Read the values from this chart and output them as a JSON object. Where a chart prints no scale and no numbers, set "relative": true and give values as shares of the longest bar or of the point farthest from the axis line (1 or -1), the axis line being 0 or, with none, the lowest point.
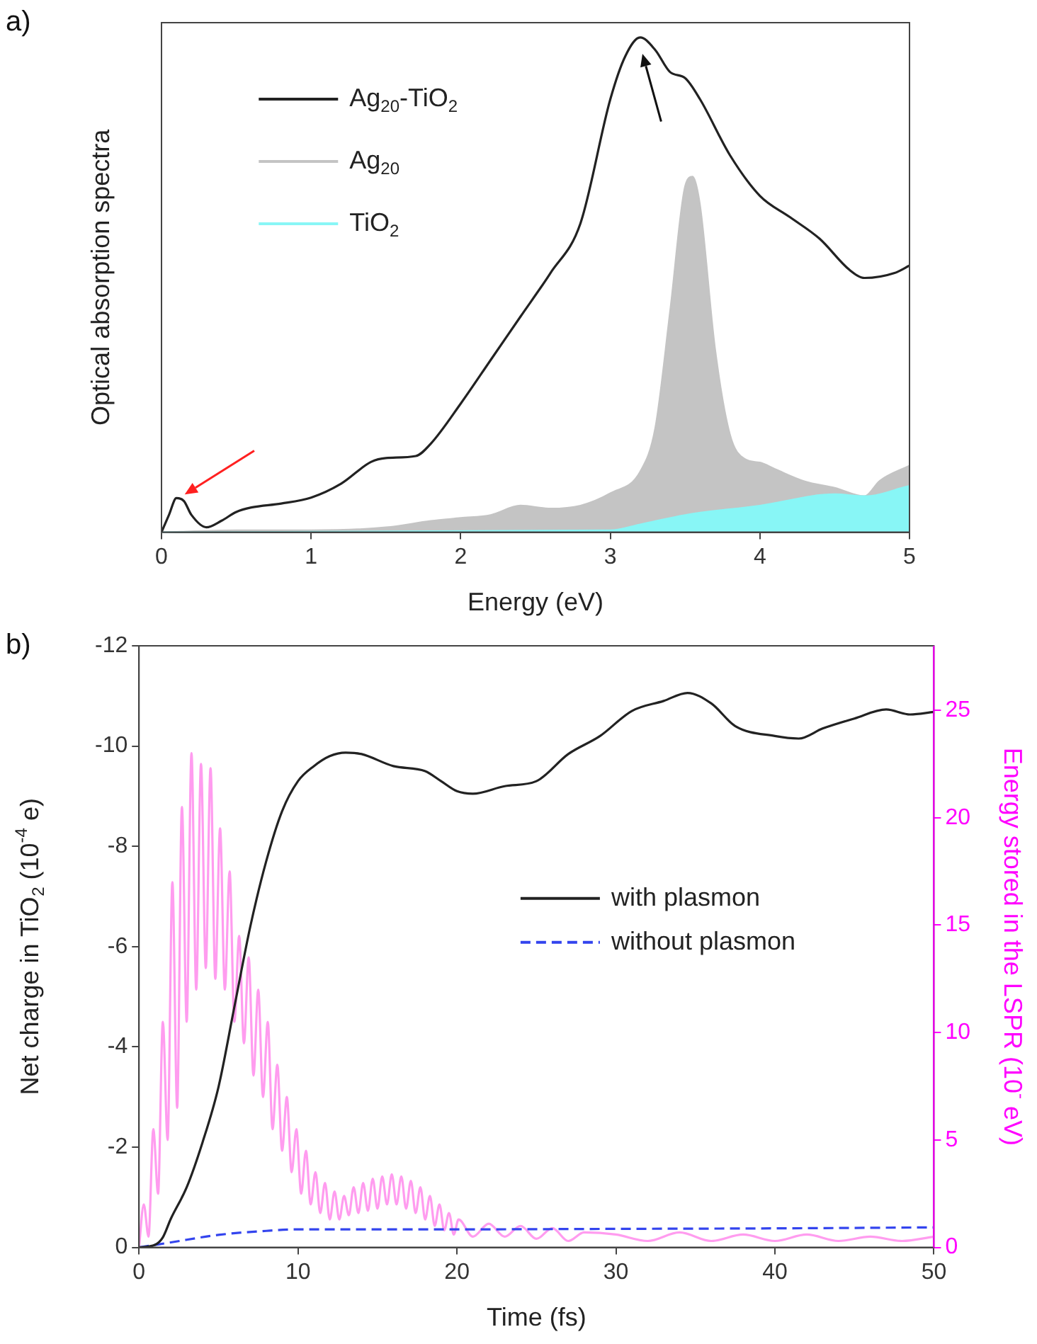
{
  "chart_data": [
    {
      "type": "line",
      "relative": true,
      "xlabel": "Energy (eV)",
      "ylabel": "Optical absorption spectra",
      "annotations": [
        "a)"
      ],
      "xlim": [
        0,
        5
      ],
      "xticks": [
        0,
        1,
        2,
        3,
        4,
        5
      ],
      "legend": "top left",
      "marker": "none",
      "grid": false,
      "series": [
        {
          "name": "Ag$_{20}$-TiO$_{2}$",
          "color": "#222222",
          "x": [
            0,
            0.05,
            0.1,
            0.15,
            0.2,
            0.3,
            0.4,
            0.5,
            0.6,
            0.8,
            1.0,
            1.2,
            1.4,
            1.5,
            1.7,
            1.8,
            2.0,
            2.2,
            2.4,
            2.6,
            2.8,
            3.0,
            3.1,
            3.2,
            3.3,
            3.4,
            3.5,
            3.6,
            3.8,
            4.0,
            4.2,
            4.4,
            4.6,
            4.7,
            4.9,
            5.0
          ],
          "values": [
            0,
            0.035,
            0.069,
            0.063,
            0.035,
            0.01,
            0.023,
            0.041,
            0.05,
            0.058,
            0.07,
            0.098,
            0.142,
            0.15,
            0.154,
            0.179,
            0.26,
            0.348,
            0.436,
            0.524,
            0.624,
            0.875,
            0.962,
            1,
            0.975,
            0.93,
            0.918,
            0.875,
            0.762,
            0.68,
            0.637,
            0.593,
            0.53,
            0.514,
            0.524,
            0.539
          ]
        },
        {
          "name": "Ag$_{20}$",
          "type": "area",
          "color": "#c4c4c4",
          "x": [
            0,
            0.5,
            1.0,
            1.5,
            1.8,
            2.0,
            2.2,
            2.4,
            2.6,
            2.8,
            3.0,
            3.2,
            3.3,
            3.4,
            3.5,
            3.55,
            3.6,
            3.7,
            3.8,
            3.9,
            4.0,
            4.1,
            4.3,
            4.5,
            4.7,
            4.8,
            5.0
          ],
          "values": [
            0,
            0.004,
            0.004,
            0.01,
            0.023,
            0.029,
            0.035,
            0.054,
            0.048,
            0.054,
            0.079,
            0.123,
            0.211,
            0.449,
            0.7,
            0.719,
            0.662,
            0.373,
            0.198,
            0.148,
            0.141,
            0.128,
            0.103,
            0.09,
            0.073,
            0.104,
            0.135
          ]
        },
        {
          "name": "TiO$_{2}$",
          "type": "area",
          "color": "#88f6f6",
          "x": [
            0,
            3.0,
            3.2,
            3.5,
            4.0,
            4.5,
            4.7,
            5.0
          ],
          "values": [
            0,
            0.004,
            0.016,
            0.035,
            0.054,
            0.077,
            0.073,
            0.094
          ]
        }
      ]
    },
    {
      "type": "line",
      "xlabel": "Time (fs)",
      "ylabel": "Net charge in TiO$_{2}$ (10$^{-4}$ e)",
      "y2label": "Energy stored in the LSPR (10$^{-}$ eV)",
      "annotations": [
        "b)"
      ],
      "xlim": [
        0,
        50
      ],
      "xticks": [
        0,
        10,
        20,
        30,
        40,
        50
      ],
      "ylim": [
        0,
        -12
      ],
      "yticks": [
        0,
        -2,
        -4,
        -6,
        -8,
        -10,
        -12
      ],
      "y2lim": [
        0,
        28
      ],
      "y2ticks": [
        0,
        5,
        10,
        15,
        20,
        25
      ],
      "legend": "right",
      "marker": "none",
      "grid": false,
      "series": [
        {
          "name": "with plasmon",
          "color": "#222222",
          "line_style": "solid",
          "x": [
            0,
            1,
            1.5,
            2,
            3,
            4,
            5,
            6,
            7,
            8,
            9,
            10,
            11,
            12,
            13,
            14,
            16,
            18,
            19,
            20,
            21,
            23,
            25,
            27,
            29,
            31,
            33,
            34.5,
            36,
            37.5,
            40,
            41.5,
            43,
            45,
            47,
            48.5,
            50
          ],
          "values": [
            0,
            -0.05,
            -0.2,
            -0.57,
            -1.2,
            -2.1,
            -3.2,
            -4.8,
            -6.4,
            -7.7,
            -8.7,
            -9.3,
            -9.6,
            -9.8,
            -9.87,
            -9.84,
            -9.6,
            -9.5,
            -9.3,
            -9.1,
            -9.05,
            -9.2,
            -9.3,
            -9.84,
            -10.2,
            -10.7,
            -10.9,
            -11.06,
            -10.85,
            -10.4,
            -10.2,
            -10.15,
            -10.35,
            -10.55,
            -10.73,
            -10.63,
            -10.68
          ]
        },
        {
          "name": "without plasmon",
          "color": "#3344ee",
          "line_style": "dashed",
          "x": [
            0,
            2,
            5,
            8,
            10,
            20,
            30,
            40,
            50
          ],
          "values": [
            0,
            -0.1,
            -0.25,
            -0.33,
            -0.36,
            -0.36,
            -0.37,
            -0.38,
            -0.4
          ]
        },
        {
          "color": "#ff9cef",
          "line_style": "solid",
          "axis": "y2",
          "x": [
            0,
            0.3,
            0.6,
            0.9,
            1.2,
            1.5,
            1.8,
            2.1,
            2.4,
            2.7,
            3.0,
            3.3,
            3.6,
            3.9,
            4.2,
            4.5,
            4.8,
            5.1,
            5.4,
            5.7,
            6.0,
            6.3,
            6.6,
            6.9,
            7.2,
            7.5,
            7.8,
            8.1,
            8.4,
            8.7,
            9.0,
            9.3,
            9.6,
            9.9,
            10.2,
            10.5,
            10.8,
            11.1,
            11.4,
            11.7,
            12.0,
            12.3,
            12.6,
            12.9,
            13.2,
            13.5,
            13.8,
            14.1,
            14.4,
            14.7,
            15.0,
            15.3,
            15.6,
            15.9,
            16.2,
            16.5,
            16.8,
            17.1,
            17.4,
            17.7,
            18.0,
            18.3,
            18.6,
            18.9,
            19.2,
            19.5,
            19.8,
            20.1,
            21,
            22,
            23,
            24,
            25,
            26,
            27,
            28,
            30,
            32,
            34,
            36,
            38,
            40,
            42,
            44,
            46,
            48,
            50
          ],
          "values": [
            0,
            2,
            0.5,
            5.5,
            2.5,
            10.5,
            5,
            17,
            6.5,
            20.5,
            10.5,
            23,
            12,
            22.5,
            13,
            22.3,
            12.5,
            19.5,
            12,
            17.5,
            10.5,
            14.5,
            9.5,
            13.5,
            8,
            12,
            7,
            10.5,
            5.5,
            8.5,
            4.5,
            7,
            3.5,
            5.5,
            2.5,
            4.5,
            2,
            3.5,
            1.6,
            3,
            1.3,
            2.6,
            1.3,
            2.4,
            1.5,
            2.8,
            1.6,
            3,
            1.7,
            3.2,
            1.8,
            3.3,
            2,
            3.4,
            2,
            3.3,
            1.8,
            3.1,
            1.6,
            2.8,
            1.3,
            2.4,
            1,
            2,
            0.8,
            1.6,
            0.6,
            1.3,
            0.5,
            1.1,
            0.5,
            1.0,
            0.4,
            0.9,
            0.3,
            0.7,
            0.6,
            0.3,
            0.7,
            0.3,
            0.6,
            0.3,
            0.6,
            0.3,
            0.5,
            0.3,
            0.5
          ]
        }
      ]
    }
  ]
}
